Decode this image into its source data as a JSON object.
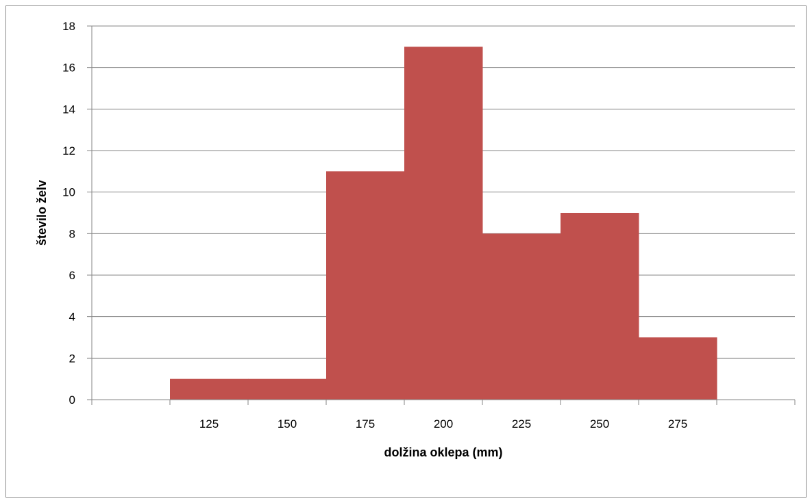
{
  "chart_data": {
    "type": "bar",
    "title": "",
    "xlabel": "dolžina oklepa (mm)",
    "ylabel": "število želv",
    "categories": [
      "",
      "125",
      "150",
      "175",
      "200",
      "225",
      "250",
      "275",
      ""
    ],
    "values": [
      0,
      1,
      1,
      11,
      17,
      8,
      9,
      3,
      0
    ],
    "ylim": [
      0,
      18
    ],
    "yticks": [
      "0",
      "2",
      "4",
      "6",
      "8",
      "10",
      "12",
      "14",
      "16",
      "18"
    ],
    "grid": true,
    "legend": "none",
    "bar_color": "#C0504D",
    "gap": 0
  }
}
